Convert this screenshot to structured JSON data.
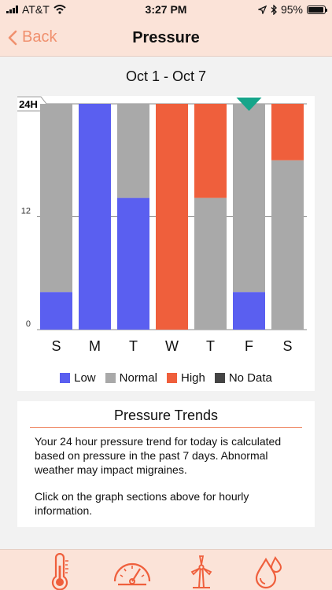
{
  "status_bar": {
    "carrier": "AT&T",
    "time": "3:27 PM",
    "battery": "95%"
  },
  "nav": {
    "back_label": "Back",
    "title": "Pressure"
  },
  "date_range": "Oct 1 - Oct 7",
  "chart_data": {
    "type": "bar",
    "stacked": true,
    "categories": [
      "S",
      "M",
      "T",
      "W",
      "T",
      "F",
      "S"
    ],
    "ylim": [
      0,
      24
    ],
    "ytick_labels": [
      "24H",
      "12",
      "0"
    ],
    "yticks": [
      24,
      12,
      0
    ],
    "series": [
      {
        "name": "Low",
        "color": "#5a5ff0",
        "values": [
          4,
          24,
          14,
          0,
          0,
          4,
          0
        ]
      },
      {
        "name": "Normal",
        "color": "#a9a9a9",
        "values": [
          20,
          0,
          10,
          0,
          14,
          20,
          18
        ]
      },
      {
        "name": "High",
        "color": "#ef5f3c",
        "values": [
          0,
          0,
          0,
          24,
          10,
          0,
          6
        ]
      },
      {
        "name": "No Data",
        "color": "#444444",
        "values": [
          0,
          0,
          0,
          0,
          0,
          0,
          0
        ]
      }
    ],
    "selected_index": 5,
    "marker_color": "#16a58a"
  },
  "legend": [
    {
      "label": "Low",
      "color": "#5a5ff0"
    },
    {
      "label": "Normal",
      "color": "#a9a9a9"
    },
    {
      "label": "High",
      "color": "#ef5f3c"
    },
    {
      "label": "No Data",
      "color": "#444444"
    }
  ],
  "trends": {
    "title": "Pressure Trends",
    "paragraph1": "Your 24 hour pressure trend for today is calculated based on pressure in the past 7 days. Abnormal weather may impact migraines.",
    "paragraph2": "Click on the graph sections above for hourly information."
  },
  "tabs": [
    {
      "icon": "thermometer-icon"
    },
    {
      "icon": "gauge-icon"
    },
    {
      "icon": "wind-turbine-icon"
    },
    {
      "icon": "humidity-drops-icon"
    }
  ],
  "accent_color": "#f0906e"
}
